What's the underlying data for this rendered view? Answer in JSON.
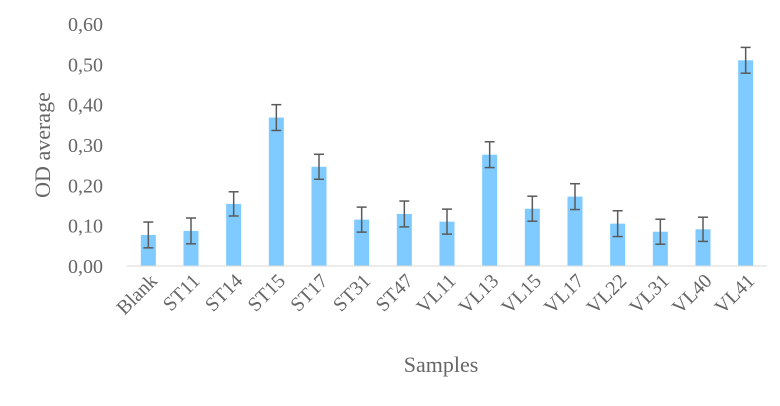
{
  "chart_data": {
    "type": "bar",
    "categories": [
      "Blank",
      "ST11",
      "ST14",
      "ST15",
      "ST17",
      "ST31",
      "ST47",
      "VL11",
      "VL13",
      "VL15",
      "VL17",
      "VL22",
      "VL31",
      "VL40",
      "VL41"
    ],
    "series": [
      {
        "values": [
          0.077,
          0.087,
          0.154,
          0.368,
          0.246,
          0.115,
          0.129,
          0.11,
          0.276,
          0.142,
          0.172,
          0.105,
          0.085,
          0.091,
          0.51
        ],
        "error": [
          0.032,
          0.032,
          0.03,
          0.032,
          0.031,
          0.031,
          0.032,
          0.031,
          0.032,
          0.031,
          0.032,
          0.032,
          0.031,
          0.03,
          0.032
        ]
      }
    ],
    "title": "",
    "xlabel": "Samples",
    "ylabel": "OD average",
    "ylim": [
      0,
      0.6
    ],
    "yticks": [
      "0,00",
      "0,10",
      "0,20",
      "0,30",
      "0,40",
      "0,50",
      "0,60"
    ],
    "grid": false,
    "legend": "none",
    "bar_color": "#7fcaff",
    "error_bar_color": "#5a5a5a"
  }
}
